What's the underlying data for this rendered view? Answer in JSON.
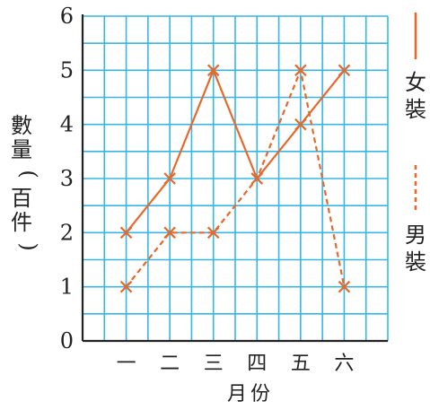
{
  "chart_data": {
    "type": "line",
    "title": "",
    "xlabel": "月份",
    "ylabel_chars": [
      "數",
      "量",
      "(",
      "百",
      "件",
      ")"
    ],
    "categories": [
      "一",
      "二",
      "三",
      "四",
      "五",
      "六"
    ],
    "ylim": [
      0,
      6
    ],
    "y_ticks": [
      0,
      1,
      2,
      3,
      4,
      5,
      6
    ],
    "grid": true,
    "legend_position": "right",
    "series": [
      {
        "name": "女裝",
        "name_chars": [
          "女",
          "裝"
        ],
        "style": "solid",
        "values": [
          2,
          3,
          5,
          3,
          4,
          5
        ]
      },
      {
        "name": "男裝",
        "name_chars": [
          "男",
          "裝"
        ],
        "style": "dashed",
        "values": [
          1,
          2,
          2,
          3,
          5,
          1
        ]
      }
    ]
  },
  "colors": {
    "line": "#e8682a",
    "grid": "#35b7e6",
    "axis": "#222222",
    "text": "#222222",
    "background": "#ffffff"
  }
}
